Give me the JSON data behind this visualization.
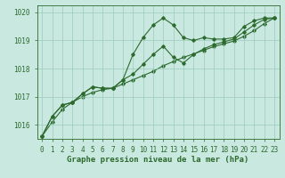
{
  "x": [
    0,
    1,
    2,
    3,
    4,
    5,
    6,
    7,
    8,
    9,
    10,
    11,
    12,
    13,
    14,
    15,
    16,
    17,
    18,
    19,
    20,
    21,
    22,
    23
  ],
  "series_spiky": [
    1015.6,
    1016.3,
    1016.7,
    1016.8,
    1017.1,
    1017.35,
    1017.3,
    1017.3,
    1017.6,
    1018.5,
    1019.1,
    1019.55,
    1019.8,
    1019.55,
    1019.1,
    1019.0,
    1019.1,
    1019.05,
    1019.05,
    1019.1,
    1019.5,
    1019.7,
    1019.8,
    1019.8
  ],
  "series_mid": [
    1015.6,
    1016.3,
    1016.7,
    1016.8,
    1017.1,
    1017.35,
    1017.3,
    1017.3,
    1017.6,
    1017.8,
    1018.15,
    1018.5,
    1018.8,
    1018.4,
    1018.2,
    1018.5,
    1018.7,
    1018.85,
    1018.95,
    1019.05,
    1019.3,
    1019.55,
    1019.75,
    1019.8
  ],
  "series_trend": [
    1015.6,
    1016.1,
    1016.55,
    1016.8,
    1017.0,
    1017.15,
    1017.25,
    1017.3,
    1017.45,
    1017.6,
    1017.75,
    1017.9,
    1018.1,
    1018.25,
    1018.4,
    1018.52,
    1018.65,
    1018.78,
    1018.88,
    1018.98,
    1019.15,
    1019.35,
    1019.6,
    1019.8
  ],
  "line_color": "#2d6a2d",
  "bg_color": "#c8e8e0",
  "grid_color": "#99ccbb",
  "xlabel": "Graphe pression niveau de la mer (hPa)",
  "ylim": [
    1015.5,
    1020.25
  ],
  "yticks": [
    1016,
    1017,
    1018,
    1019,
    1020
  ],
  "xlim": [
    -0.5,
    23.5
  ],
  "xticks": [
    0,
    1,
    2,
    3,
    4,
    5,
    6,
    7,
    8,
    9,
    10,
    11,
    12,
    13,
    14,
    15,
    16,
    17,
    18,
    19,
    20,
    21,
    22,
    23
  ]
}
